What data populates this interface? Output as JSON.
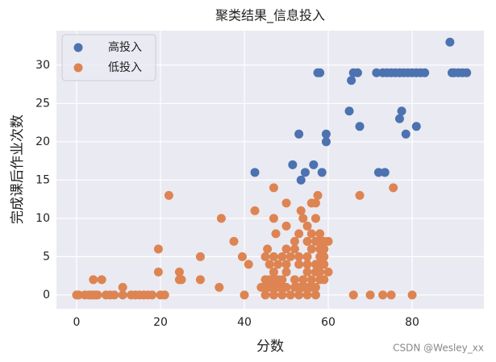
{
  "chart_data": {
    "type": "scatter",
    "title": "聚类结果_信息投入",
    "xlabel": "分数",
    "ylabel": "完成课后作业次数",
    "watermark": "CSDN @Wesley_xx",
    "xlim": [
      -4.8,
      97.1
    ],
    "ylim": [
      -1.8,
      34.5
    ],
    "xticks": [
      0,
      20,
      40,
      60,
      80
    ],
    "yticks": [
      0,
      5,
      10,
      15,
      20,
      25,
      30
    ],
    "grid": true,
    "legend": "upper left",
    "series": [
      {
        "name": "高投入",
        "color": "#4c72b0",
        "x": [
          42.5,
          51.5,
          53,
          53.5,
          54.5,
          56.5,
          57.5,
          58,
          58.5,
          59.5,
          59.5,
          65,
          65.5,
          66,
          67,
          67.5,
          71.5,
          72,
          73.5,
          73,
          74,
          75,
          76,
          77,
          77,
          77.5,
          78,
          78.5,
          79,
          80,
          81,
          81,
          82,
          83,
          89,
          89.5,
          90,
          91,
          92,
          93
        ],
        "values": [
          16,
          17,
          21,
          15,
          16,
          17,
          29,
          29,
          16,
          21,
          20,
          24,
          28,
          29,
          29,
          22,
          29,
          16,
          16,
          29,
          29,
          29,
          29,
          29,
          23,
          24,
          29,
          21,
          29,
          29,
          22,
          29,
          29,
          29,
          33,
          29,
          29,
          29,
          29,
          29
        ]
      },
      {
        "name": "低投入",
        "color": "#dd8452",
        "x": [
          0,
          0.5,
          2,
          3,
          3.5,
          4,
          4.5,
          5,
          7,
          8,
          9,
          11,
          13,
          14,
          15,
          16,
          17,
          18,
          20,
          21,
          40,
          45,
          47,
          49,
          51,
          53,
          55,
          57,
          66,
          70,
          73,
          75,
          80,
          11,
          34,
          44,
          45,
          46,
          47,
          48,
          49,
          50,
          52,
          53,
          54,
          55,
          56,
          57,
          4,
          6,
          24.5,
          25,
          29.5,
          45,
          46,
          47,
          48,
          49,
          52,
          54,
          56,
          58,
          59,
          19.5,
          24.5,
          47,
          50,
          55,
          57,
          58,
          60,
          41,
          46,
          48,
          50,
          53,
          55,
          57,
          58,
          59,
          29.5,
          39.5,
          45,
          47,
          49,
          51,
          53,
          55,
          58,
          59,
          19.5,
          45.5,
          50,
          52,
          56,
          58,
          59,
          37.5,
          52,
          55,
          57,
          58,
          59,
          60,
          47.5,
          53,
          56,
          58,
          50,
          55,
          34.5,
          47,
          54,
          57,
          42.5,
          53.5,
          50,
          56,
          57,
          22,
          57.5,
          67.5,
          47,
          75.5
        ],
        "values": [
          0,
          0,
          0,
          0,
          0,
          0,
          0,
          0,
          0,
          0,
          0,
          0,
          0,
          0,
          0,
          0,
          0,
          0,
          0,
          0,
          0,
          0,
          0,
          0,
          0,
          0,
          0,
          0,
          0,
          0,
          0,
          0,
          0,
          1,
          1,
          1,
          1,
          1,
          1,
          1,
          1,
          1,
          1,
          1,
          1,
          1,
          1,
          1,
          2,
          2,
          2,
          2,
          2,
          2,
          2,
          2,
          2,
          2,
          2,
          2,
          2,
          2,
          2,
          3,
          3,
          3,
          3,
          3,
          3,
          3,
          3,
          4,
          4,
          4,
          4,
          4,
          4,
          4,
          4,
          4,
          5,
          5,
          5,
          5,
          5,
          5,
          5,
          5,
          5,
          5,
          6,
          6,
          6,
          6,
          6,
          6,
          6,
          7,
          7,
          7,
          7,
          7,
          7,
          7,
          8,
          8,
          8,
          8,
          9,
          9,
          10,
          10,
          10,
          10,
          11,
          11,
          12,
          12,
          12,
          13,
          13,
          13,
          14,
          14
        ]
      }
    ]
  }
}
